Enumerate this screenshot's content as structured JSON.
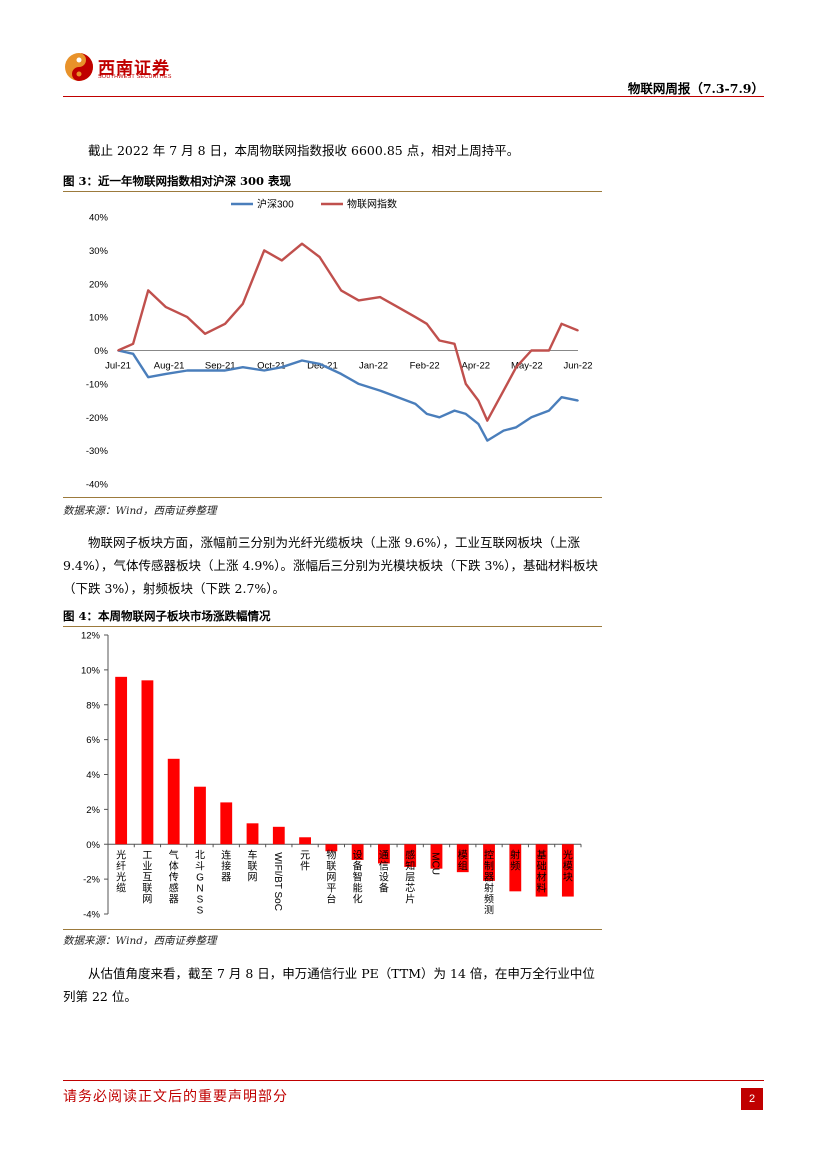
{
  "header": {
    "logo_text": "西南证券",
    "logo_subtext": "SOUTHWEST SECURITIES",
    "report_title": "物联网周报（7.3-7.9）"
  },
  "paragraphs": {
    "p1": "截止 2022 年 7 月 8 日，本周物联网指数报收 6600.85 点，相对上周持平。",
    "p2": "物联网子板块方面，涨幅前三分别为光纤光缆板块（上涨 9.6%），工业互联网板块（上涨 9.4%），气体传感器板块（上涨 4.9%）。涨幅后三分别为光模块板块（下跌 3%），基础材料板块（下跌 3%），射频板块（下跌 2.7%）。",
    "p3": "从估值角度来看，截至 7 月 8 日，申万通信行业 PE（TTM）为 14 倍，在申万全行业中位列第 22 位。"
  },
  "figures": {
    "fig3_title": "图 3：近一年物联网指数相对沪深 300 表现",
    "fig4_title": "图 4：本周物联网子板块市场涨跌幅情况",
    "source": "数据来源：Wind，西南证券整理"
  },
  "footer": {
    "disclaimer": "请务必阅读正文后的重要声明部分",
    "page": "2"
  },
  "colors": {
    "brand_red": "#c00000",
    "hs300_blue": "#4a7ebb",
    "iot_red": "#c0504d",
    "bar_red": "#ff0000"
  },
  "chart_data": [
    {
      "type": "line",
      "title": "",
      "x_ticks": [
        "Jul-21",
        "Aug-21",
        "Sep-21",
        "Oct-21",
        "Dec-21",
        "Jan-22",
        "Feb-22",
        "Apr-22",
        "May-22",
        "Jun-22"
      ],
      "ylim": [
        -40,
        40
      ],
      "y_ticks": [
        "40%",
        "30%",
        "20%",
        "10%",
        "0%",
        "-10%",
        "-20%",
        "-30%",
        "-40%"
      ],
      "legend": "top",
      "series": [
        {
          "name": "沪深300",
          "color": "#4a7ebb",
          "x": [
            "2021-07-08",
            "2021-07-20",
            "2021-08-01",
            "2021-08-15",
            "2021-09-01",
            "2021-09-15",
            "2021-10-01",
            "2021-10-15",
            "2021-11-01",
            "2021-11-15",
            "2021-12-01",
            "2021-12-15",
            "2022-01-01",
            "2022-01-15",
            "2022-02-01",
            "2022-02-15",
            "2022-03-01",
            "2022-03-10",
            "2022-03-20",
            "2022-04-01",
            "2022-04-10",
            "2022-04-20",
            "2022-04-27",
            "2022-05-10",
            "2022-05-20",
            "2022-06-01",
            "2022-06-15",
            "2022-06-25",
            "2022-07-08"
          ],
          "values": [
            0,
            -1,
            -8,
            -7,
            -6,
            -6,
            -6,
            -5,
            -6,
            -5,
            -3,
            -4,
            -7,
            -10,
            -12,
            -14,
            -16,
            -19,
            -20,
            -18,
            -19,
            -22,
            -27,
            -24,
            -23,
            -20,
            -18,
            -14,
            -15
          ]
        },
        {
          "name": "物联网指数",
          "color": "#c0504d",
          "x": [
            "2021-07-08",
            "2021-07-20",
            "2021-08-01",
            "2021-08-15",
            "2021-09-01",
            "2021-09-15",
            "2021-10-01",
            "2021-10-15",
            "2021-11-01",
            "2021-11-15",
            "2021-12-01",
            "2021-12-15",
            "2022-01-01",
            "2022-01-15",
            "2022-02-01",
            "2022-02-15",
            "2022-03-01",
            "2022-03-10",
            "2022-03-20",
            "2022-04-01",
            "2022-04-10",
            "2022-04-20",
            "2022-04-27",
            "2022-05-10",
            "2022-05-20",
            "2022-06-01",
            "2022-06-15",
            "2022-06-25",
            "2022-07-08"
          ],
          "values": [
            0,
            2,
            18,
            13,
            10,
            5,
            8,
            14,
            30,
            27,
            32,
            28,
            18,
            15,
            16,
            13,
            10,
            8,
            3,
            2,
            -10,
            -15,
            -21,
            -12,
            -5,
            0,
            0,
            8,
            6
          ]
        }
      ]
    },
    {
      "type": "bar",
      "title": "",
      "ylim": [
        -4,
        12
      ],
      "y_ticks": [
        "12%",
        "10%",
        "8%",
        "6%",
        "4%",
        "2%",
        "0%",
        "-2%",
        "-4%"
      ],
      "categories": [
        "光纤光缆",
        "工业互联网",
        "气体传感器",
        "北斗/GNSS",
        "连接器",
        "车联网",
        "WIFI/BT SoC",
        "元件",
        "物联网平台",
        "设备智能化",
        "通信设备",
        "感知层芯片",
        "MCU",
        "模组",
        "控制器/射频测试",
        "射频",
        "基础材料",
        "光模块"
      ],
      "category_labels": [
        "光纤光缆",
        "工业互联网",
        "气体传感器",
        "北斗GNSS",
        "连接器",
        "车联网",
        "WIFI/BT SoC",
        "元件",
        "物联网平台",
        "设备智能化",
        "通信设备",
        "感知层芯片",
        "MCU",
        "模组",
        "控制器射频测",
        "射频",
        "基础材料",
        "光模块"
      ],
      "values": [
        9.6,
        9.4,
        4.9,
        3.3,
        2.4,
        1.2,
        1.0,
        0.4,
        -0.4,
        -0.9,
        -1.1,
        -1.3,
        -1.4,
        -1.6,
        -2.1,
        -2.7,
        -3.0,
        -3.0
      ],
      "color": "#ff0000"
    }
  ]
}
